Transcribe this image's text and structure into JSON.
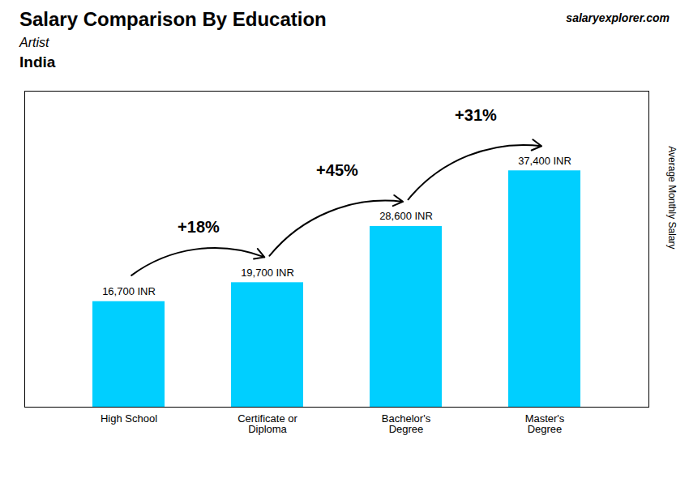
{
  "chart_data": {
    "type": "bar",
    "title": "Salary Comparison By Education",
    "subtitle": [
      "Artist",
      "India"
    ],
    "ylabel": "Average Monthly Salary",
    "source": "salaryexplorer.com",
    "categories": [
      "High School",
      "Certificate or\nDiploma",
      "Bachelor's\nDegree",
      "Master's\nDegree"
    ],
    "values": [
      16700,
      19700,
      28600,
      37400
    ],
    "value_labels": [
      "16,700 INR",
      "19,700 INR",
      "28,600 INR",
      "37,400 INR"
    ],
    "data_labels": true,
    "color": "#00cfff",
    "ylim": [
      0,
      50000
    ],
    "yticks": [],
    "tick_labels": "x",
    "grid": false,
    "annotations": [
      {
        "text": "+18%",
        "from": "High School",
        "to": "Certificate or\nDiploma"
      },
      {
        "text": "+45%",
        "from": "Certificate or\nDiploma",
        "to": "Bachelor's\nDegree"
      },
      {
        "text": "+31%",
        "from": "Bachelor's\nDegree",
        "to": "Master's\nDegree"
      }
    ]
  }
}
